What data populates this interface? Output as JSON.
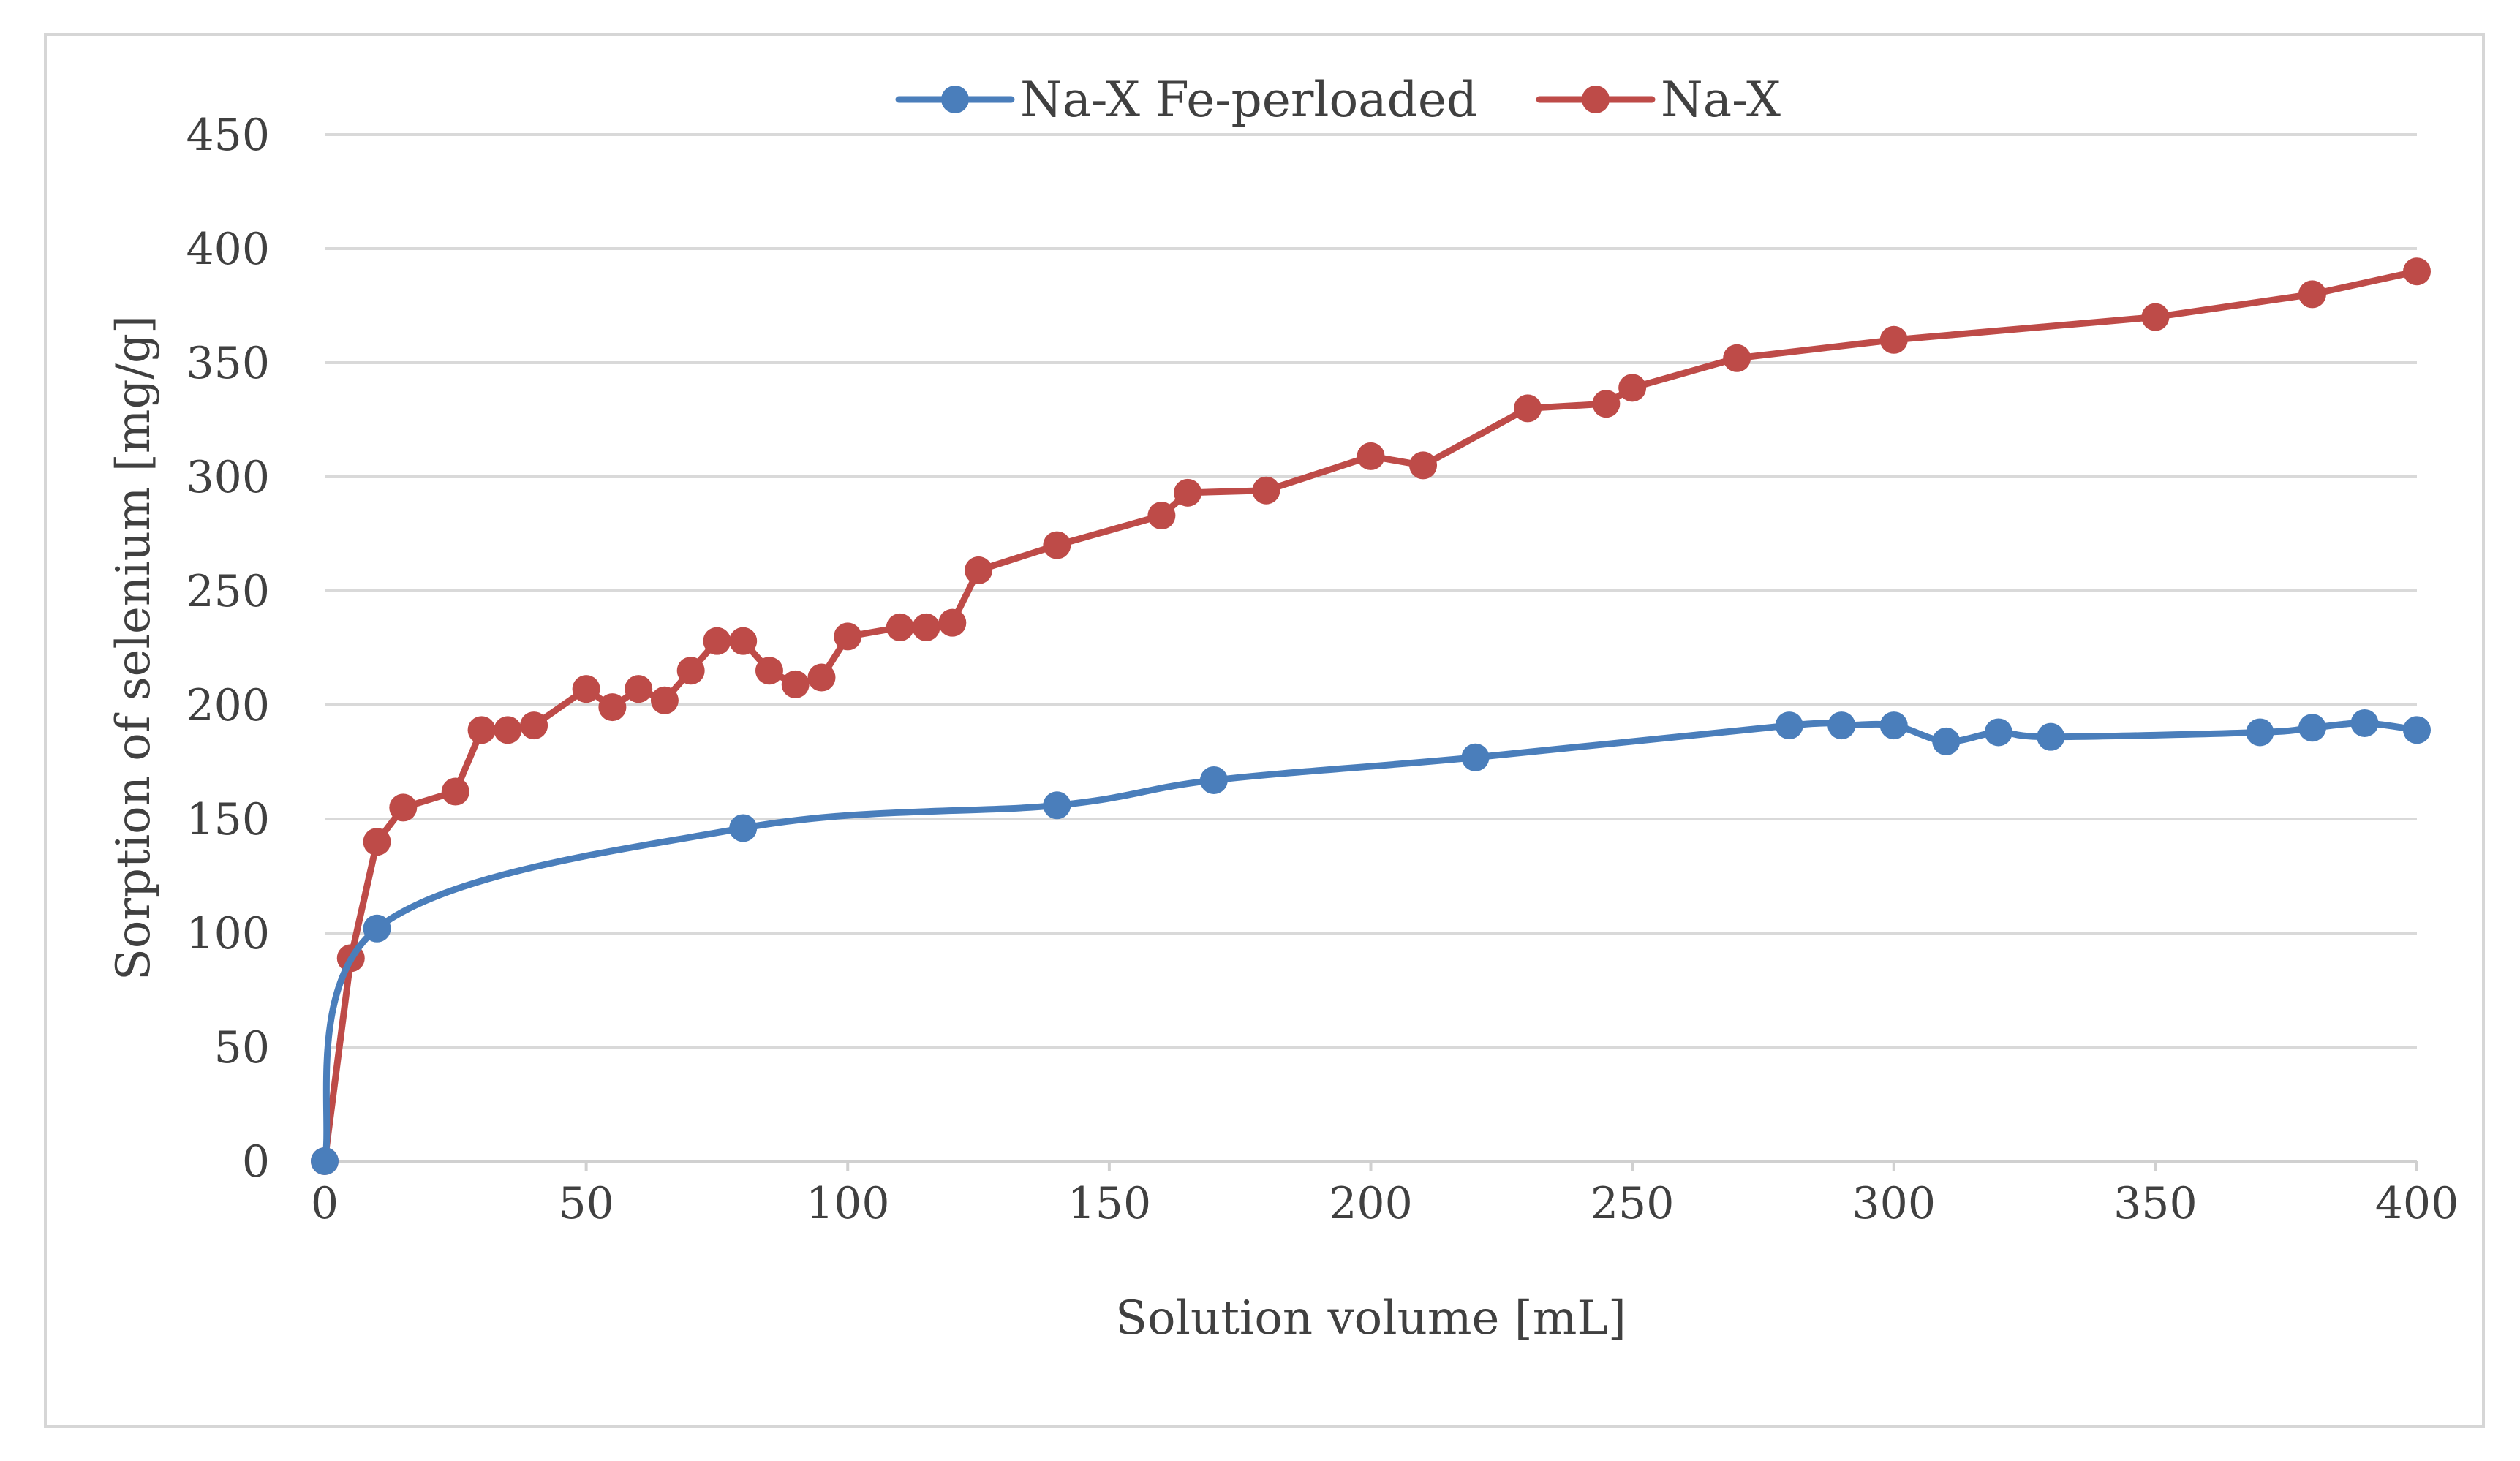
{
  "chart_data": {
    "type": "line",
    "xlabel": "Solution volume [mL]",
    "ylabel": "Sorption of selenium [mg/g]",
    "xlim": [
      0,
      400
    ],
    "ylim": [
      0,
      450
    ],
    "xticks": [
      0,
      50,
      100,
      150,
      200,
      250,
      300,
      350,
      400
    ],
    "yticks": [
      0,
      50,
      100,
      150,
      200,
      250,
      300,
      350,
      400,
      450
    ],
    "grid": "horizontal",
    "legend_position": "top-center",
    "series": [
      {
        "name": "Na-X Fe-perloaded",
        "color": "#4a7ebb",
        "smooth": true,
        "x": [
          0,
          10,
          80,
          140,
          170,
          220,
          280,
          290,
          300,
          310,
          320,
          330,
          370,
          380,
          390,
          400
        ],
        "y": [
          0,
          102,
          146,
          156,
          167,
          177,
          191,
          191,
          191,
          184,
          188,
          186,
          188,
          190,
          192,
          189
        ]
      },
      {
        "name": "Na-X",
        "color": "#be4b48",
        "smooth": false,
        "x": [
          0,
          5,
          10,
          15,
          25,
          30,
          35,
          40,
          50,
          55,
          60,
          65,
          70,
          75,
          80,
          85,
          90,
          95,
          100,
          110,
          115,
          120,
          125,
          140,
          160,
          165,
          180,
          200,
          210,
          230,
          245,
          250,
          270,
          300,
          350,
          380,
          400
        ],
        "y": [
          0,
          89,
          140,
          155,
          162,
          189,
          189,
          191,
          207,
          199,
          207,
          202,
          215,
          228,
          228,
          215,
          209,
          212,
          230,
          234,
          234,
          236,
          259,
          270,
          283,
          293,
          294,
          309,
          305,
          330,
          332,
          339,
          352,
          360,
          370,
          380,
          390
        ]
      }
    ]
  }
}
